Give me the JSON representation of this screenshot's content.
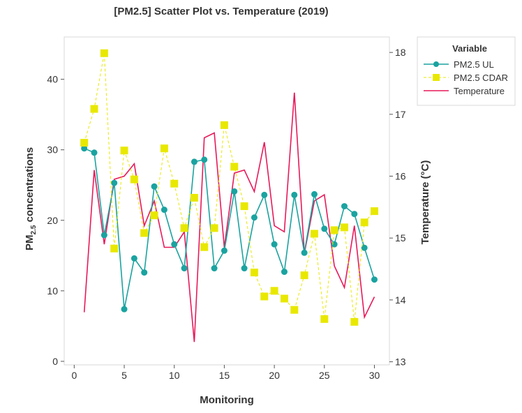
{
  "chart_data": {
    "type": "line",
    "title": "[PM2.5] Scatter Plot vs. Temperature (2019)",
    "xlabel": "Monitoring",
    "ylabel": "PM",
    "ylabel_sub": "2.5",
    "ylabel_suffix": " concentrations",
    "y2label": "Temperature (°C)",
    "xlim": [
      -1,
      31.5
    ],
    "ylim": [
      -0.5,
      46
    ],
    "y2lim": [
      12.95,
      18.25
    ],
    "xticks": [
      0,
      5,
      10,
      15,
      20,
      25,
      30
    ],
    "yticks": [
      0,
      10,
      20,
      30,
      40
    ],
    "y2ticks": [
      13,
      14,
      15,
      16,
      17,
      18
    ],
    "grid": false,
    "legend": {
      "title": "Variable",
      "position": "top-right-outside"
    },
    "x": [
      1,
      2,
      3,
      4,
      5,
      6,
      7,
      8,
      9,
      10,
      11,
      12,
      13,
      14,
      15,
      16,
      17,
      18,
      19,
      20,
      21,
      22,
      23,
      24,
      25,
      26,
      27,
      28,
      29,
      30
    ],
    "series": [
      {
        "name": "PM2.5 UL",
        "axis": "left",
        "color": "#1aa3a0",
        "marker": "circle",
        "line": "solid",
        "values": [
          30.2,
          29.6,
          17.9,
          25.3,
          7.4,
          14.6,
          12.6,
          24.8,
          21.5,
          16.6,
          13.2,
          28.3,
          28.6,
          13.2,
          15.7,
          24.1,
          13.2,
          20.4,
          23.6,
          16.6,
          12.7,
          23.6,
          15.4,
          23.7,
          18.8,
          16.6,
          22.0,
          20.9,
          16.1,
          11.6
        ]
      },
      {
        "name": "PM2.5 CDAR",
        "axis": "left",
        "color": "#e8e800",
        "marker": "square",
        "line": "dashed",
        "values": [
          31.0,
          35.8,
          43.7,
          16.0,
          29.9,
          25.8,
          18.2,
          20.7,
          30.2,
          25.2,
          18.9,
          23.2,
          16.2,
          18.9,
          33.5,
          27.6,
          22.0,
          12.6,
          9.2,
          10.0,
          8.9,
          7.3,
          12.2,
          18.1,
          6.0,
          18.6,
          19.0,
          5.6,
          19.7,
          21.3
        ]
      },
      {
        "name": "Temperature",
        "axis": "right",
        "color": "#e8195a",
        "marker": "none",
        "line": "solid",
        "values": [
          13.8,
          16.1,
          14.9,
          15.95,
          16.0,
          16.2,
          15.2,
          15.6,
          14.85,
          14.85,
          15.1,
          13.32,
          16.62,
          16.7,
          14.85,
          16.05,
          16.1,
          15.75,
          16.55,
          15.2,
          15.1,
          17.35,
          14.75,
          15.6,
          15.7,
          14.55,
          14.2,
          15.2,
          13.72,
          14.05
        ]
      }
    ]
  }
}
